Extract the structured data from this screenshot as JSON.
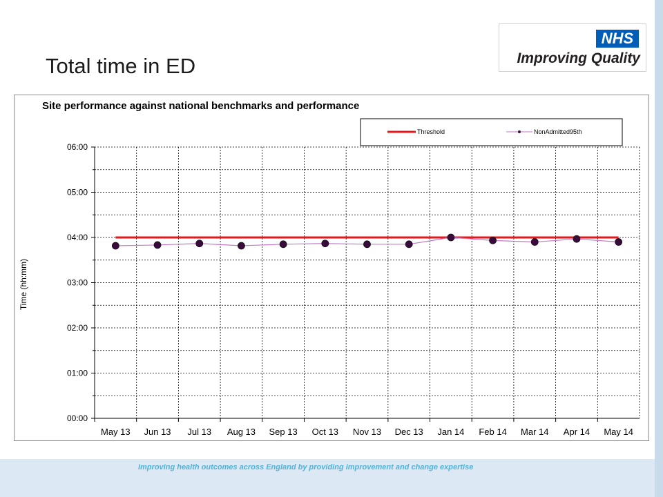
{
  "slide": {
    "title": "Total time in ED",
    "footer": "Improving health outcomes across England by providing improvement and change expertise"
  },
  "logo": {
    "badge": "NHS",
    "text": "Improving Quality",
    "badge_color": "#005eb8"
  },
  "chart_data": {
    "type": "line",
    "title": "Site performance against national  benchmarks and performance",
    "xlabel": "",
    "ylabel": "Time (hh:mm)",
    "categories": [
      "May 13",
      "Jun 13",
      "Jul 13",
      "Aug 13",
      "Sep 13",
      "Oct 13",
      "Nov 13",
      "Dec 13",
      "Jan 14",
      "Feb 14",
      "Mar 14",
      "Apr 14",
      "May 14"
    ],
    "y_ticks": [
      "00:00",
      "01:00",
      "02:00",
      "03:00",
      "04:00",
      "05:00",
      "06:00"
    ],
    "ylim_minutes": [
      0,
      360
    ],
    "grid": true,
    "legend_position": "top-right",
    "series": [
      {
        "name": "Threshold",
        "color": "#e31a1c",
        "values_minutes": [
          240,
          240,
          240,
          240,
          240,
          240,
          240,
          240,
          240,
          240,
          240,
          240,
          240
        ]
      },
      {
        "name": "NonAdmitted95th",
        "color": "#c678c9",
        "marker_color": "#3b0a3d",
        "values_minutes": [
          229,
          230,
          232,
          229,
          231,
          232,
          231,
          231,
          240,
          236,
          234,
          238,
          234
        ]
      }
    ]
  }
}
